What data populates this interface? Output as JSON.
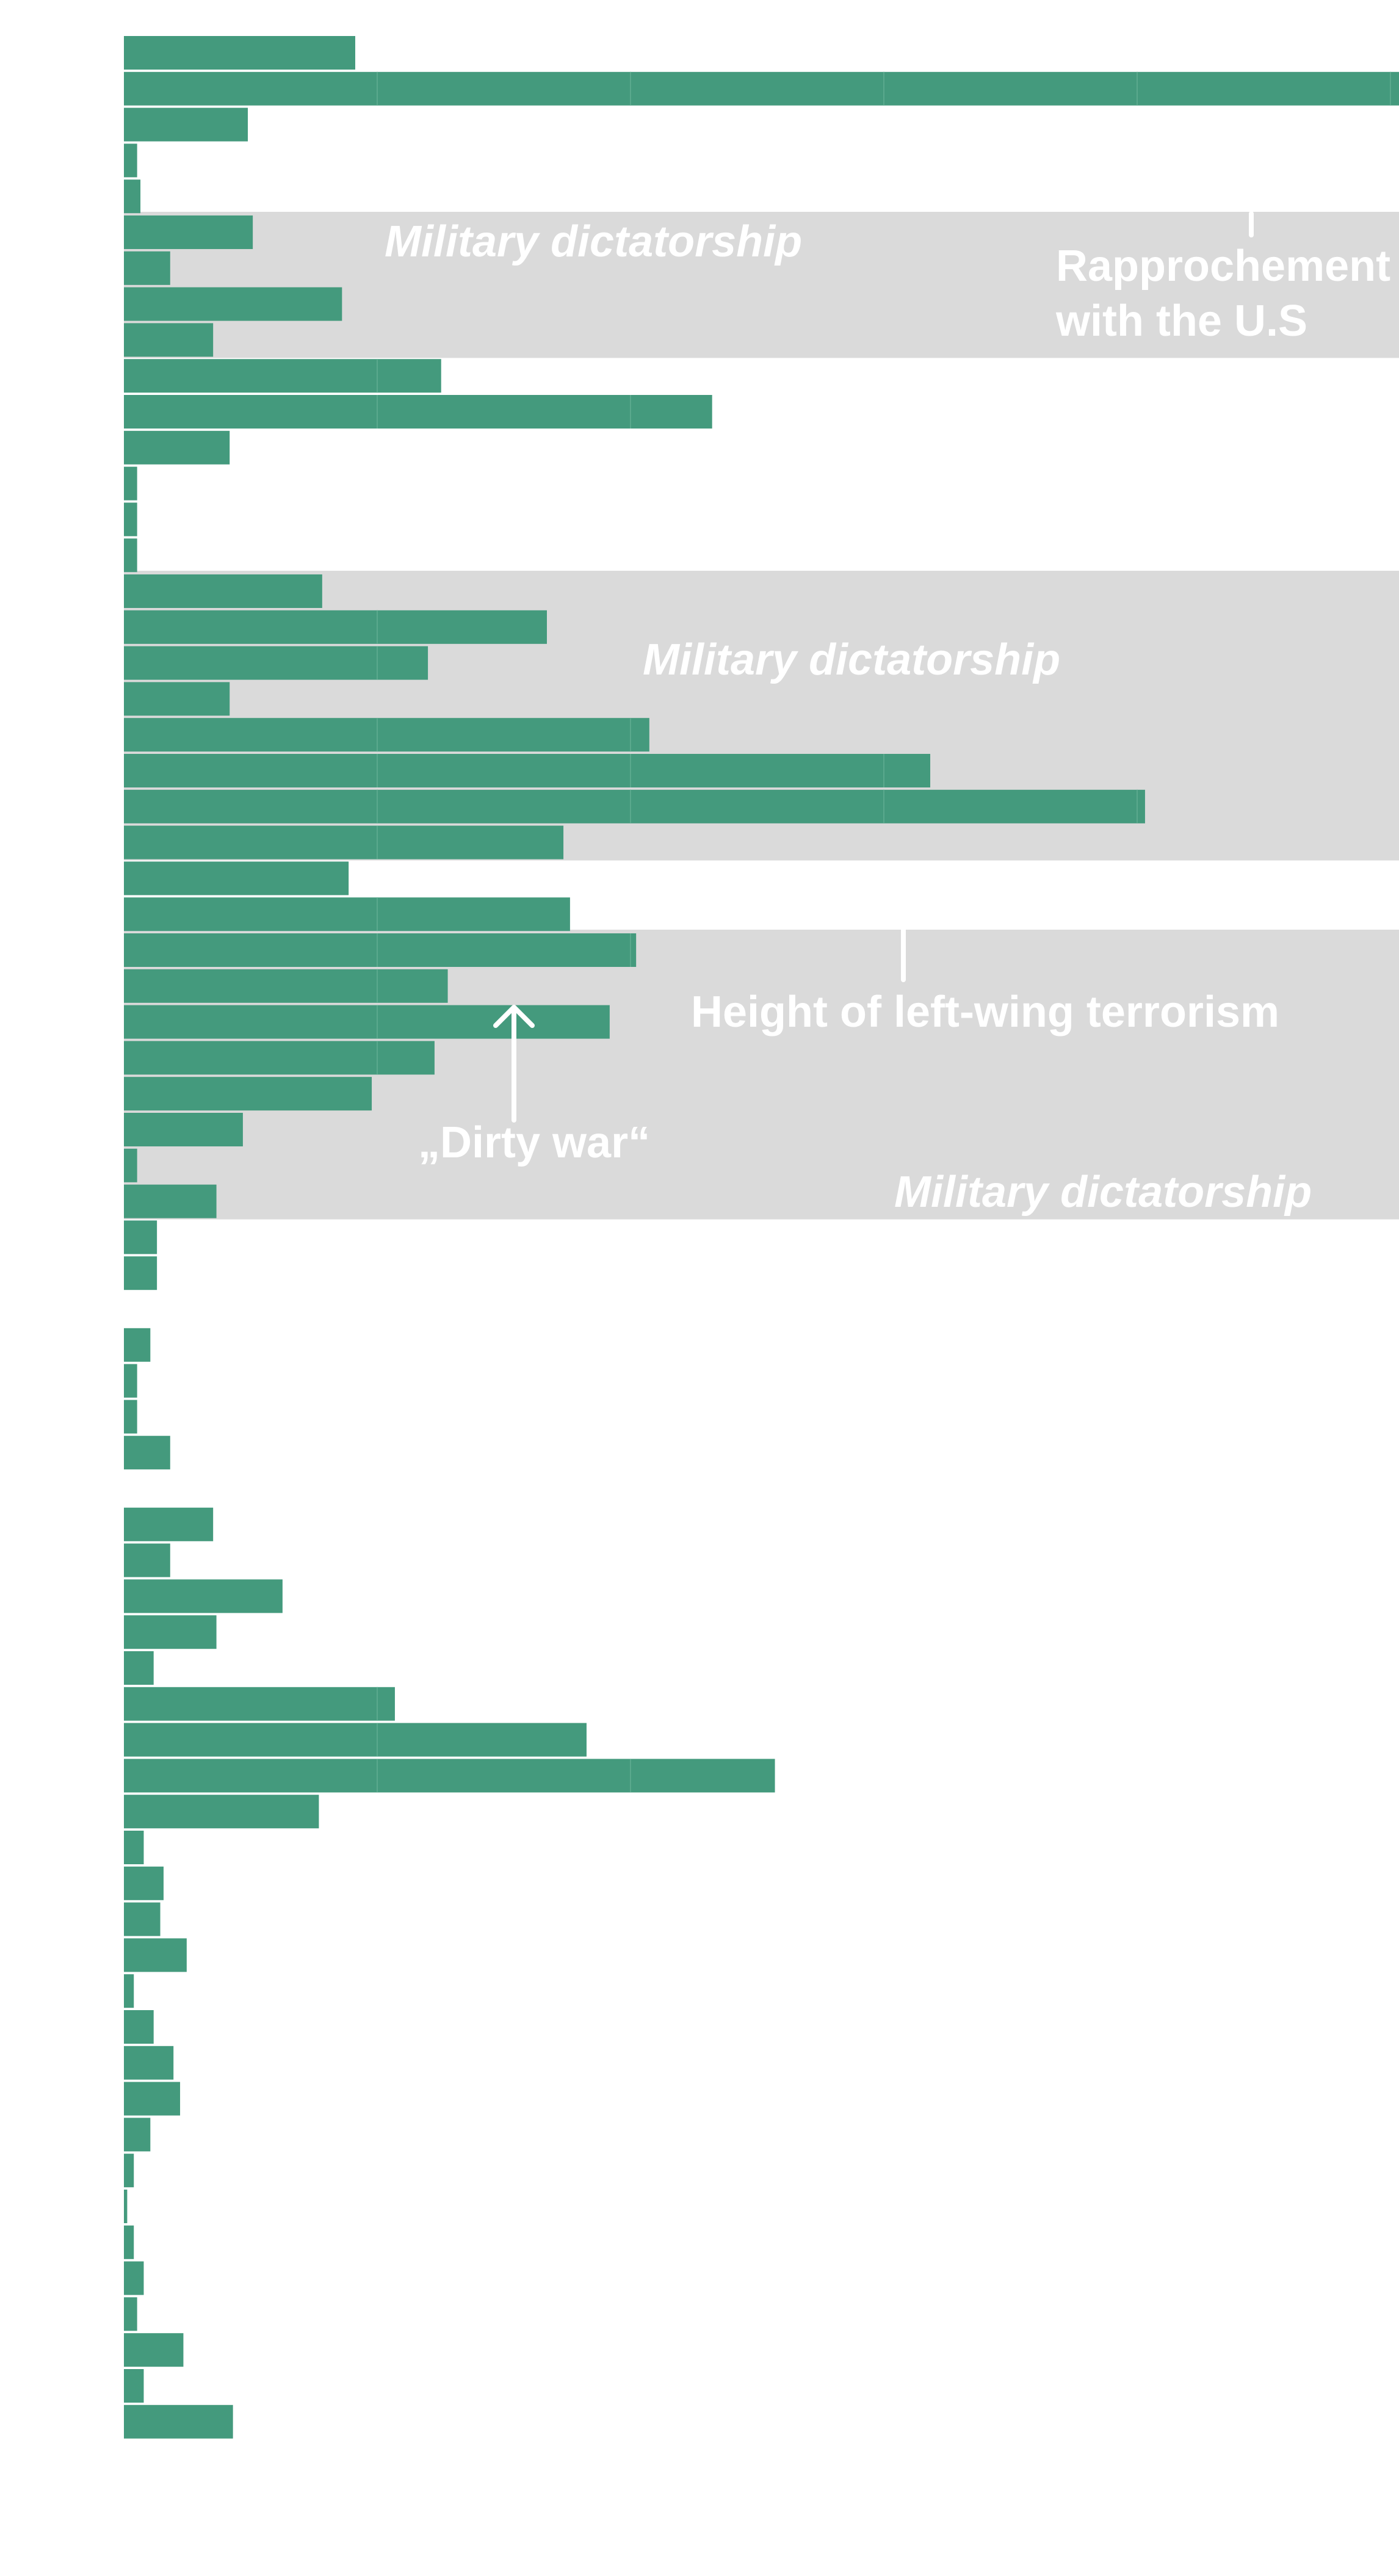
{
  "colors": {
    "bar": "#449a7d",
    "band": "#dadada",
    "label": "#ffffff",
    "background": "#ffffff"
  },
  "chart_data": {
    "type": "bar",
    "orientation": "horizontal",
    "xlim": [
      0,
      100
    ],
    "grid": false,
    "legend": "none",
    "values": [
      14,
      89,
      7.5,
      0.8,
      1,
      7.8,
      2.8,
      13.2,
      5.4,
      19.2,
      35.6,
      6.4,
      0.8,
      0.8,
      0.8,
      12,
      25.6,
      18.4,
      6.4,
      31.8,
      48.8,
      61.8,
      26.6,
      13.6,
      27,
      31,
      19.6,
      29.4,
      18.8,
      15,
      7.2,
      0.8,
      5.6,
      2,
      2,
      0,
      1.6,
      0.8,
      0.8,
      2.8,
      0,
      5.4,
      2.8,
      9.6,
      5.6,
      1.8,
      16.4,
      28,
      39.4,
      11.8,
      1.2,
      2.4,
      2.2,
      3.8,
      0.6,
      1.8,
      3,
      3.4,
      1.6,
      0.6,
      0.2,
      0.6,
      1.2,
      0.8,
      3.6,
      1.2,
      6.6
    ],
    "bands": [
      {
        "label": "Military dictatorship",
        "start_index": 5,
        "end_index": 8
      },
      {
        "label": "Military dictatorship",
        "start_index": 15,
        "end_index": 22
      },
      {
        "label": "Military dictatorship",
        "start_index": 25,
        "end_index": 32
      }
    ],
    "annotations": [
      {
        "label": "Rapprochement with the U.S",
        "lines": [
          "Rapprochement",
          "with the U.S"
        ],
        "bar_index": 1
      },
      {
        "label": "Height of left-wing terrorism",
        "bar_index": 21
      },
      {
        "label": "„Dirty war“",
        "bar_index": 25
      }
    ]
  }
}
